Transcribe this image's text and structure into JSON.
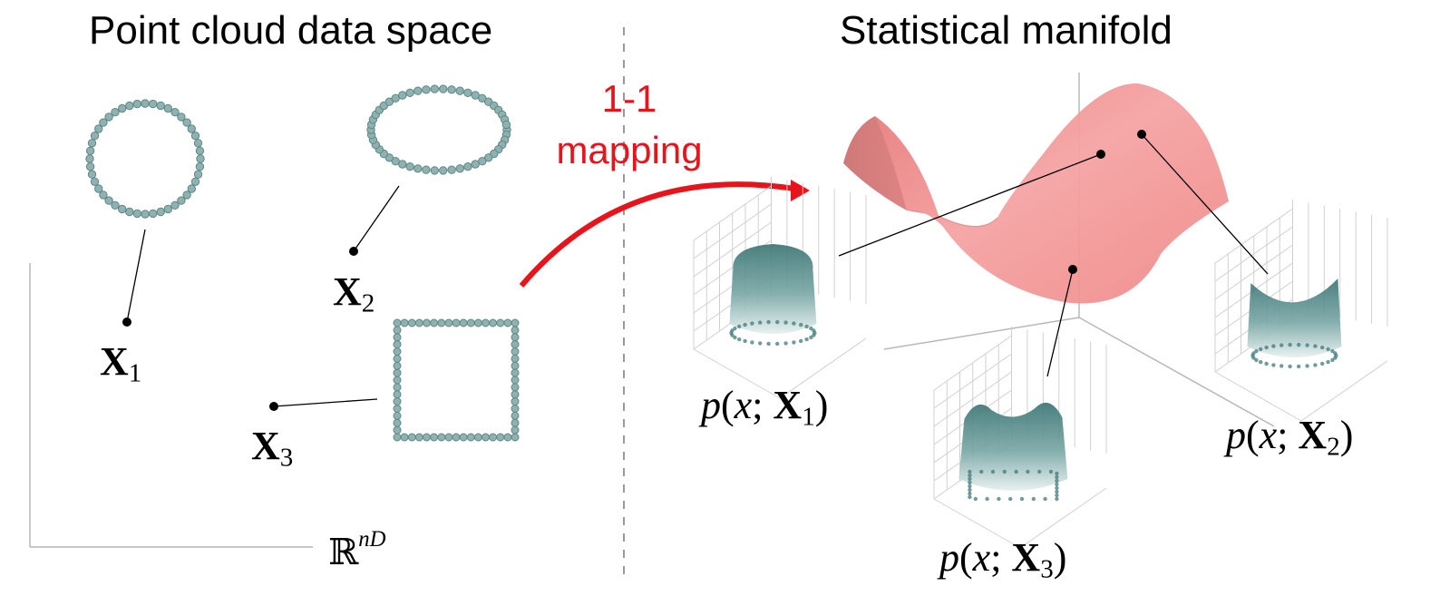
{
  "titles": {
    "left": "Point cloud data space",
    "right": "Statistical manifold"
  },
  "mapping": {
    "line1": "1-1",
    "line2": "mapping",
    "color": "#e8141b"
  },
  "space": {
    "symbol": "ℝ",
    "superscript": "nD"
  },
  "points": [
    {
      "symbol": "X",
      "index": "1"
    },
    {
      "symbol": "X",
      "index": "2"
    },
    {
      "symbol": "X",
      "index": "3"
    }
  ],
  "densities": [
    {
      "func": "p",
      "var": "x",
      "symbol": "X",
      "index": "1"
    },
    {
      "func": "p",
      "var": "x",
      "symbol": "X",
      "index": "2"
    },
    {
      "func": "p",
      "var": "x",
      "symbol": "X",
      "index": "3"
    }
  ],
  "colors": {
    "dot": "#8fb2b0",
    "dot_stroke": "#5e8786",
    "surface": "#f29696",
    "density": "#3f7a79"
  }
}
